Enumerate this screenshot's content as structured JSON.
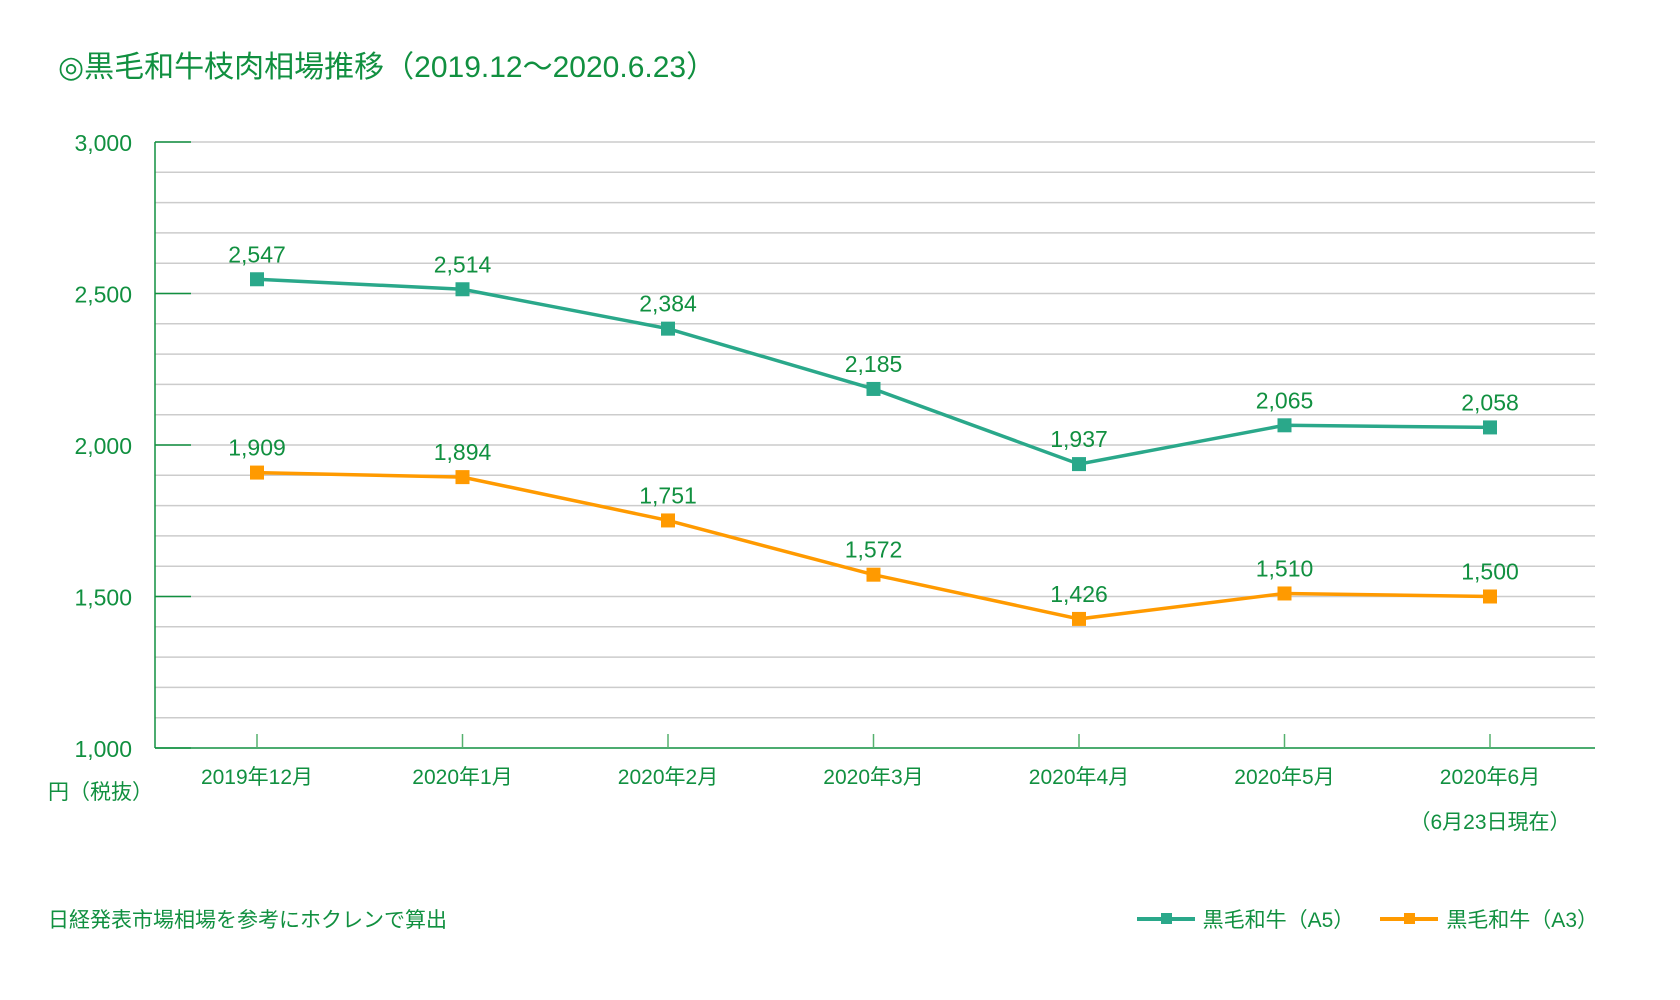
{
  "chart_data": {
    "type": "line",
    "title": "◎黒毛和牛枝肉相場推移（2019.12～2020.6.23）",
    "xlabel": "",
    "ylabel": "円（税抜）",
    "ylim": [
      1000,
      3000
    ],
    "yticks": [
      1000,
      1500,
      2000,
      2500,
      3000
    ],
    "ytick_labels": [
      "1,000",
      "1,500",
      "2,000",
      "2,500",
      "3,000"
    ],
    "minor_grid_step": 100,
    "grid": true,
    "categories": [
      "2019年12月",
      "2020年1月",
      "2020年2月",
      "2020年3月",
      "2020年4月",
      "2020年5月",
      "2020年6月"
    ],
    "category_sub": "（6月23日現在）",
    "legend_position": "bottom-right",
    "series": [
      {
        "name": "黒毛和牛（A5）",
        "color": "#2aa88a",
        "values": [
          2547,
          2514,
          2384,
          2185,
          1937,
          2065,
          2058
        ],
        "labels": [
          "2,547",
          "2,514",
          "2,384",
          "2,185",
          "1,937",
          "2,065",
          "2,058"
        ]
      },
      {
        "name": "黒毛和牛（A3）",
        "color": "#ff9a00",
        "values": [
          1909,
          1894,
          1751,
          1572,
          1426,
          1510,
          1500
        ],
        "labels": [
          "1,909",
          "1,894",
          "1,751",
          "1,572",
          "1,426",
          "1,510",
          "1,500"
        ]
      }
    ]
  },
  "note": "日経発表市場相場を参考にホクレンで算出",
  "colors": {
    "text": "#119040",
    "axis": "#119040",
    "grid": "#cccccc"
  }
}
